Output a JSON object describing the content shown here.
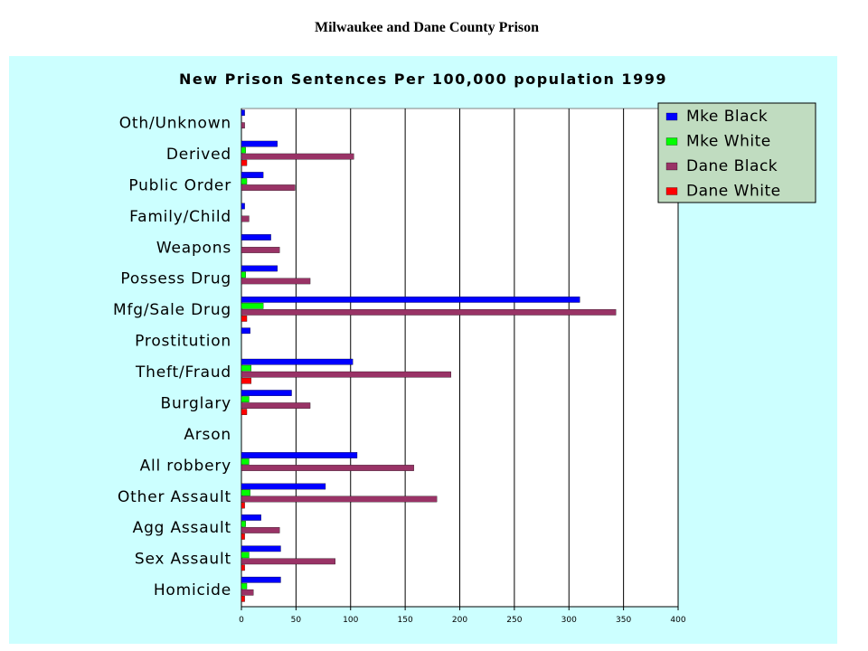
{
  "page": {
    "title": "Milwaukee and Dane County Prison"
  },
  "chart_data": {
    "type": "bar",
    "orientation": "horizontal",
    "title": "New Prison Sentences Per 100,000 population 1999",
    "xlabel": "",
    "ylabel": "",
    "xlim": [
      0,
      400
    ],
    "xticks": [
      0,
      50,
      100,
      150,
      200,
      250,
      300,
      350,
      400
    ],
    "grid": "vertical",
    "legend_position": "top-right",
    "categories": [
      "Oth/Unknown",
      "Derived",
      "Public Order",
      "Family/Child",
      "Weapons",
      "Possess Drug",
      "Mfg/Sale Drug",
      "Prostitution",
      "Theft/Fraud",
      "Burglary",
      "Arson",
      "All robbery",
      "Other Assault",
      "Agg Assault",
      "Sex Assault",
      "Homicide"
    ],
    "series": [
      {
        "name": "Mke Black",
        "color": "#0000ff",
        "values": [
          3,
          33,
          20,
          3,
          27,
          33,
          310,
          8,
          102,
          46,
          0,
          106,
          77,
          18,
          36,
          36
        ]
      },
      {
        "name": "Mke White",
        "color": "#00ff00",
        "values": [
          0,
          4,
          5,
          0,
          0,
          4,
          20,
          0,
          9,
          7,
          0,
          7,
          8,
          4,
          7,
          5
        ]
      },
      {
        "name": "Dane Black",
        "color": "#993366",
        "values": [
          3,
          103,
          49,
          7,
          35,
          63,
          343,
          0,
          192,
          63,
          0,
          158,
          179,
          35,
          86,
          11
        ]
      },
      {
        "name": "Dane White",
        "color": "#ff0000",
        "values": [
          0,
          5,
          0,
          0,
          0,
          0,
          5,
          0,
          9,
          5,
          0,
          0,
          3,
          3,
          3,
          3
        ]
      }
    ]
  }
}
